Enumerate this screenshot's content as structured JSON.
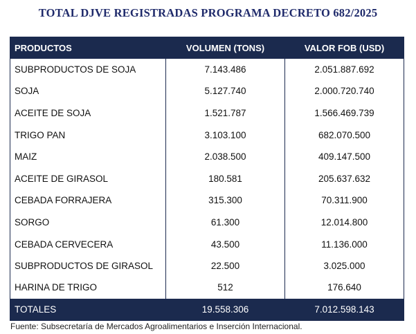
{
  "title": "TOTAL DJVE REGISTRADAS PROGRAMA DECRETO 682/2025",
  "table": {
    "headers": [
      "PRODUCTOS",
      "VOLUMEN (TONS)",
      "VALOR FOB (USD)"
    ],
    "rows": [
      [
        "SUBPRODUCTOS DE SOJA",
        "7.143.486",
        "2.051.887.692"
      ],
      [
        "SOJA",
        "5.127.740",
        "2.000.720.740"
      ],
      [
        "ACEITE DE SOJA",
        "1.521.787",
        "1.566.469.739"
      ],
      [
        "TRIGO PAN",
        "3.103.100",
        "682.070.500"
      ],
      [
        "MAIZ",
        "2.038.500",
        "409.147.500"
      ],
      [
        "ACEITE DE GIRASOL",
        "180.581",
        "205.637.632"
      ],
      [
        "CEBADA FORRAJERA",
        "315.300",
        "70.311.900"
      ],
      [
        "SORGO",
        "61.300",
        "12.014.800"
      ],
      [
        "CEBADA CERVECERA",
        "43.500",
        "11.136.000"
      ],
      [
        "SUBPRODUCTOS DE GIRASOL",
        "22.500",
        "3.025.000"
      ],
      [
        "HARINA DE TRIGO",
        "512",
        "176.640"
      ]
    ],
    "totals": [
      "TOTALES",
      "19.558.306",
      "7.012.598.143"
    ]
  },
  "source": "Fuente: Subsecretaría de Mercados Agroalimentarios e Inserción Internacional.",
  "colors": {
    "header_bg": "#1b2a4e",
    "title_color": "#1f2a6b"
  }
}
